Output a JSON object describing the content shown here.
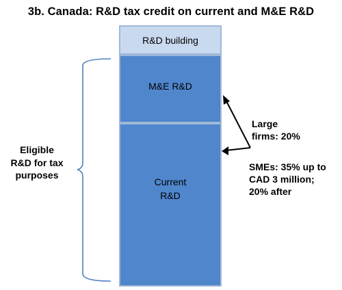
{
  "title": "3b. Canada: R&D tax credit on current and M&E R&D",
  "blocks": {
    "building": "R&D building",
    "me": "M&E R&D",
    "current": "Current\nR&D"
  },
  "eligible_label": "Eligible\nR&D for tax\npurposes",
  "large_firms": "Large\nfirms: 20%",
  "smes": "SMEs: 35% up to\nCAD 3 million;\n20% after",
  "colors": {
    "building_fill": "#c9d9ef",
    "rd_fill": "#4f86cc",
    "border": "#9fb8d8",
    "brace": "#4f7fc0"
  }
}
